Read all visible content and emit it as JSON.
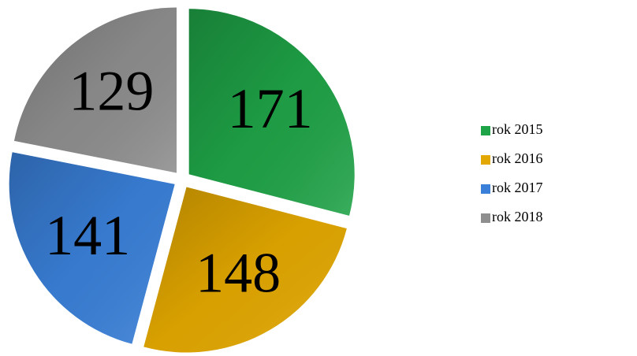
{
  "chart_data": {
    "type": "pie",
    "categories": [
      "rok 2015",
      "rok 2016",
      "rok 2017",
      "rok 2018"
    ],
    "values": [
      171,
      148,
      141,
      129
    ],
    "colors": [
      "#1fa347",
      "#e3a800",
      "#3a80d9",
      "#8e8e8e"
    ],
    "legend": "right"
  }
}
